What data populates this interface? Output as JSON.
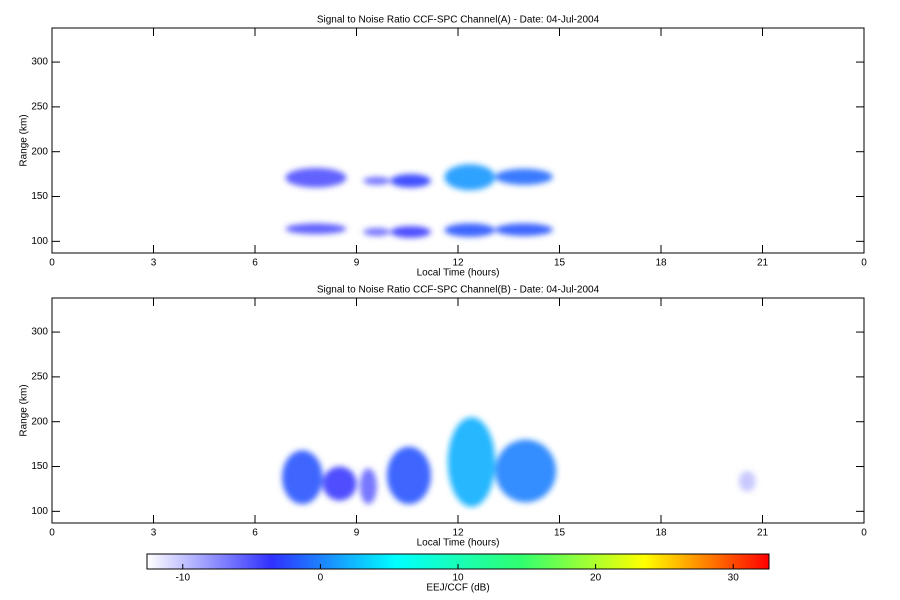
{
  "chart_data": [
    {
      "type": "heatmap",
      "title": "Signal to Noise Ratio CCF-SPC Channel(A) - Date: 04-Jul-2004",
      "x_label": "Local Time (hours)",
      "y_label": "Range (km)",
      "xlim": [
        0,
        24
      ],
      "xticks": [
        0,
        3,
        6,
        9,
        12,
        15,
        18,
        21,
        {
          "value": 24,
          "label": "0"
        }
      ],
      "ylim": [
        87,
        338
      ],
      "yticks": [
        100,
        150,
        200,
        250,
        300
      ],
      "regions": [
        {
          "x": [
            6.9,
            8.7
          ],
          "y": [
            160,
            182
          ],
          "value": -5
        },
        {
          "x": [
            9.2,
            10.0
          ],
          "y": [
            163,
            172
          ],
          "value": -6
        },
        {
          "x": [
            10.0,
            11.2
          ],
          "y": [
            160,
            175
          ],
          "value": -3
        },
        {
          "x": [
            11.6,
            13.1
          ],
          "y": [
            157,
            186
          ],
          "value": 1
        },
        {
          "x": [
            13.1,
            14.8
          ],
          "y": [
            163,
            181
          ],
          "value": -1
        },
        {
          "x": [
            6.9,
            8.7
          ],
          "y": [
            108,
            120
          ],
          "value": -5
        },
        {
          "x": [
            9.2,
            10.0
          ],
          "y": [
            106,
            115
          ],
          "value": -6
        },
        {
          "x": [
            10.0,
            11.2
          ],
          "y": [
            104,
            117
          ],
          "value": -4
        },
        {
          "x": [
            11.6,
            13.1
          ],
          "y": [
            105,
            120
          ],
          "value": -2
        },
        {
          "x": [
            13.1,
            14.8
          ],
          "y": [
            106,
            120
          ],
          "value": -2
        }
      ]
    },
    {
      "type": "heatmap",
      "title": "Signal to Noise Ratio CCF-SPC Channel(B) - Date: 04-Jul-2004",
      "x_label": "Local Time (hours)",
      "y_label": "Range (km)",
      "xlim": [
        0,
        24
      ],
      "xticks": [
        0,
        3,
        6,
        9,
        12,
        15,
        18,
        21,
        {
          "value": 24,
          "label": "0"
        }
      ],
      "ylim": [
        87,
        338
      ],
      "yticks": [
        100,
        150,
        200,
        250,
        300
      ],
      "regions": [
        {
          "x": [
            6.8,
            8.0
          ],
          "y": [
            108,
            168
          ],
          "value": -2
        },
        {
          "x": [
            8.0,
            9.0
          ],
          "y": [
            112,
            150
          ],
          "value": -4
        },
        {
          "x": [
            9.1,
            9.6
          ],
          "y": [
            108,
            148
          ],
          "value": -6
        },
        {
          "x": [
            9.9,
            11.2
          ],
          "y": [
            108,
            172
          ],
          "value": -2
        },
        {
          "x": [
            11.7,
            13.1
          ],
          "y": [
            105,
            205
          ],
          "value": 2
        },
        {
          "x": [
            13.1,
            14.9
          ],
          "y": [
            110,
            180
          ],
          "value": 0
        },
        {
          "x": [
            20.3,
            20.8
          ],
          "y": [
            122,
            145
          ],
          "value": -10
        }
      ]
    },
    {
      "type": "colorbar",
      "label": "EEJ/CCF (dB)",
      "clim": [
        -12.6,
        32.6
      ],
      "cticks": [
        -10,
        0,
        10,
        20,
        30
      ],
      "colors": [
        "#ffffff",
        "#3030ff",
        "#00ffff",
        "#30ff70",
        "#ffff00",
        "#ff0000"
      ]
    }
  ]
}
